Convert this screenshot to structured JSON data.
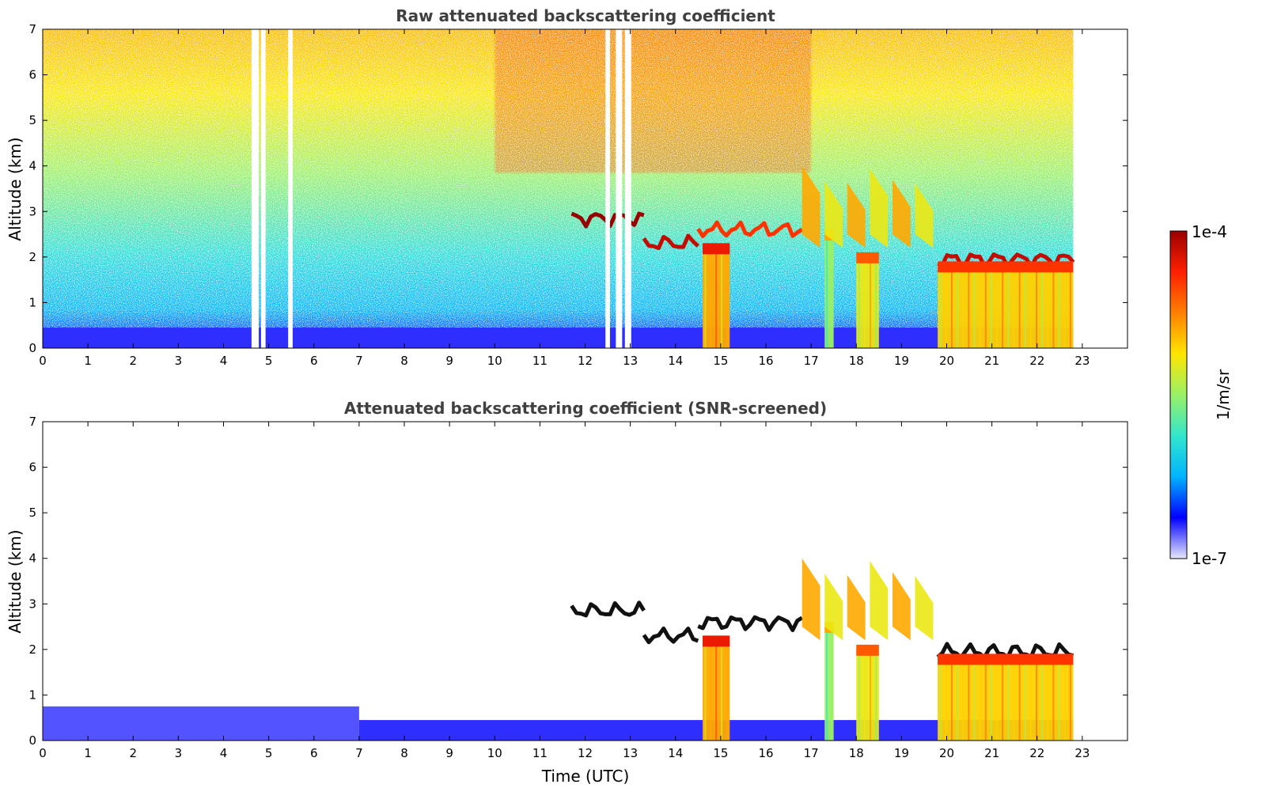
{
  "chart_data": [
    {
      "type": "heatmap",
      "title": "Raw attenuated backscattering coefficient",
      "xlabel": "",
      "ylabel": "Altitude (km)",
      "xlim": [
        0,
        24
      ],
      "ylim": [
        0,
        7
      ],
      "x_ticks": [
        "0",
        "1",
        "2",
        "3",
        "4",
        "5",
        "6",
        "7",
        "8",
        "9",
        "10",
        "11",
        "12",
        "13",
        "14",
        "15",
        "16",
        "17",
        "18",
        "19",
        "20",
        "21",
        "22",
        "23"
      ],
      "y_ticks": [
        "0",
        "1",
        "2",
        "3",
        "4",
        "5",
        "6",
        "7"
      ],
      "data_end_time": 22.8,
      "data_gaps": [
        [
          4.62,
          4.78
        ],
        [
          4.83,
          4.93
        ],
        [
          5.43,
          5.53
        ],
        [
          12.45,
          12.55
        ],
        [
          12.68,
          12.82
        ],
        [
          12.88,
          13.02
        ]
      ],
      "features": [
        {
          "kind": "boundary-layer",
          "t_start": 0,
          "t_end": 22.8,
          "alt_top": 0.45,
          "level": 0.1
        },
        {
          "kind": "cloud-layer",
          "t_start": 11.7,
          "t_end": 13.3,
          "alt": 2.85,
          "level": 1.0
        },
        {
          "kind": "cloud-layer",
          "t_start": 13.3,
          "t_end": 14.5,
          "alt": 2.3,
          "level": 0.95
        },
        {
          "kind": "cloud-layer",
          "t_start": 14.5,
          "t_end": 16.8,
          "alt": 2.6,
          "level": 0.85
        },
        {
          "kind": "cloud-layer",
          "t_start": 19.8,
          "t_end": 22.8,
          "alt": 1.95,
          "level": 0.95
        },
        {
          "kind": "precipitation",
          "t_start": 14.6,
          "t_end": 15.2,
          "alt_top": 2.2,
          "level": 0.7
        },
        {
          "kind": "precipitation",
          "t_start": 17.3,
          "t_end": 17.5,
          "alt_top": 2.5,
          "level": 0.5
        },
        {
          "kind": "precipitation",
          "t_start": 18.0,
          "t_end": 18.5,
          "alt_top": 2.0,
          "level": 0.6
        },
        {
          "kind": "precipitation",
          "t_start": 19.8,
          "t_end": 22.8,
          "alt_top": 1.8,
          "level": 0.65
        },
        {
          "kind": "virga",
          "t_start": 16.8,
          "t_end": 19.8,
          "alt_bottom": 2.2,
          "alt_top": 4.0,
          "level": 0.7
        }
      ]
    },
    {
      "type": "heatmap",
      "title": "Attenuated backscattering coefficient (SNR-screened)",
      "xlabel": "Time (UTC)",
      "ylabel": "Altitude (km)",
      "xlim": [
        0,
        24
      ],
      "ylim": [
        0,
        7
      ],
      "x_ticks": [
        "0",
        "1",
        "2",
        "3",
        "4",
        "5",
        "6",
        "7",
        "8",
        "9",
        "10",
        "11",
        "12",
        "13",
        "14",
        "15",
        "16",
        "17",
        "18",
        "19",
        "20",
        "21",
        "22",
        "23"
      ],
      "y_ticks": [
        "0",
        "1",
        "2",
        "3",
        "4",
        "5",
        "6",
        "7"
      ],
      "data_end_time": 22.8,
      "features": [
        {
          "kind": "boundary-layer",
          "t_start": 0,
          "t_end": 7,
          "alt_top": 0.75,
          "level": 0.08
        },
        {
          "kind": "boundary-layer",
          "t_start": 7,
          "t_end": 22.8,
          "alt_top": 0.45,
          "level": 0.1
        },
        {
          "kind": "cloud-layer",
          "t_start": 11.7,
          "t_end": 13.3,
          "alt": 2.85,
          "level": 1.0
        },
        {
          "kind": "cloud-layer",
          "t_start": 13.3,
          "t_end": 14.5,
          "alt": 2.3,
          "level": 0.95
        },
        {
          "kind": "cloud-layer",
          "t_start": 14.5,
          "t_end": 16.8,
          "alt": 2.6,
          "level": 0.85
        },
        {
          "kind": "cloud-layer",
          "t_start": 19.8,
          "t_end": 22.8,
          "alt": 1.95,
          "level": 0.95
        },
        {
          "kind": "precipitation",
          "t_start": 14.6,
          "t_end": 15.2,
          "alt_top": 2.2,
          "level": 0.7
        },
        {
          "kind": "precipitation",
          "t_start": 17.3,
          "t_end": 17.5,
          "alt_top": 2.5,
          "level": 0.5
        },
        {
          "kind": "precipitation",
          "t_start": 18.0,
          "t_end": 18.5,
          "alt_top": 2.0,
          "level": 0.6
        },
        {
          "kind": "precipitation",
          "t_start": 19.8,
          "t_end": 22.8,
          "alt_top": 1.8,
          "level": 0.65
        },
        {
          "kind": "virga",
          "t_start": 16.8,
          "t_end": 19.8,
          "alt_bottom": 2.2,
          "alt_top": 4.0,
          "level": 0.7
        }
      ]
    }
  ],
  "colorbar": {
    "label": "1/m/sr",
    "max_label": "1e-4",
    "min_label": "1e-7",
    "scale": "log",
    "colormap": [
      "#e6e6ff",
      "#0000ff",
      "#00b4ff",
      "#33e6cc",
      "#99f066",
      "#ffe600",
      "#ff8000",
      "#ff2000",
      "#990000"
    ]
  }
}
